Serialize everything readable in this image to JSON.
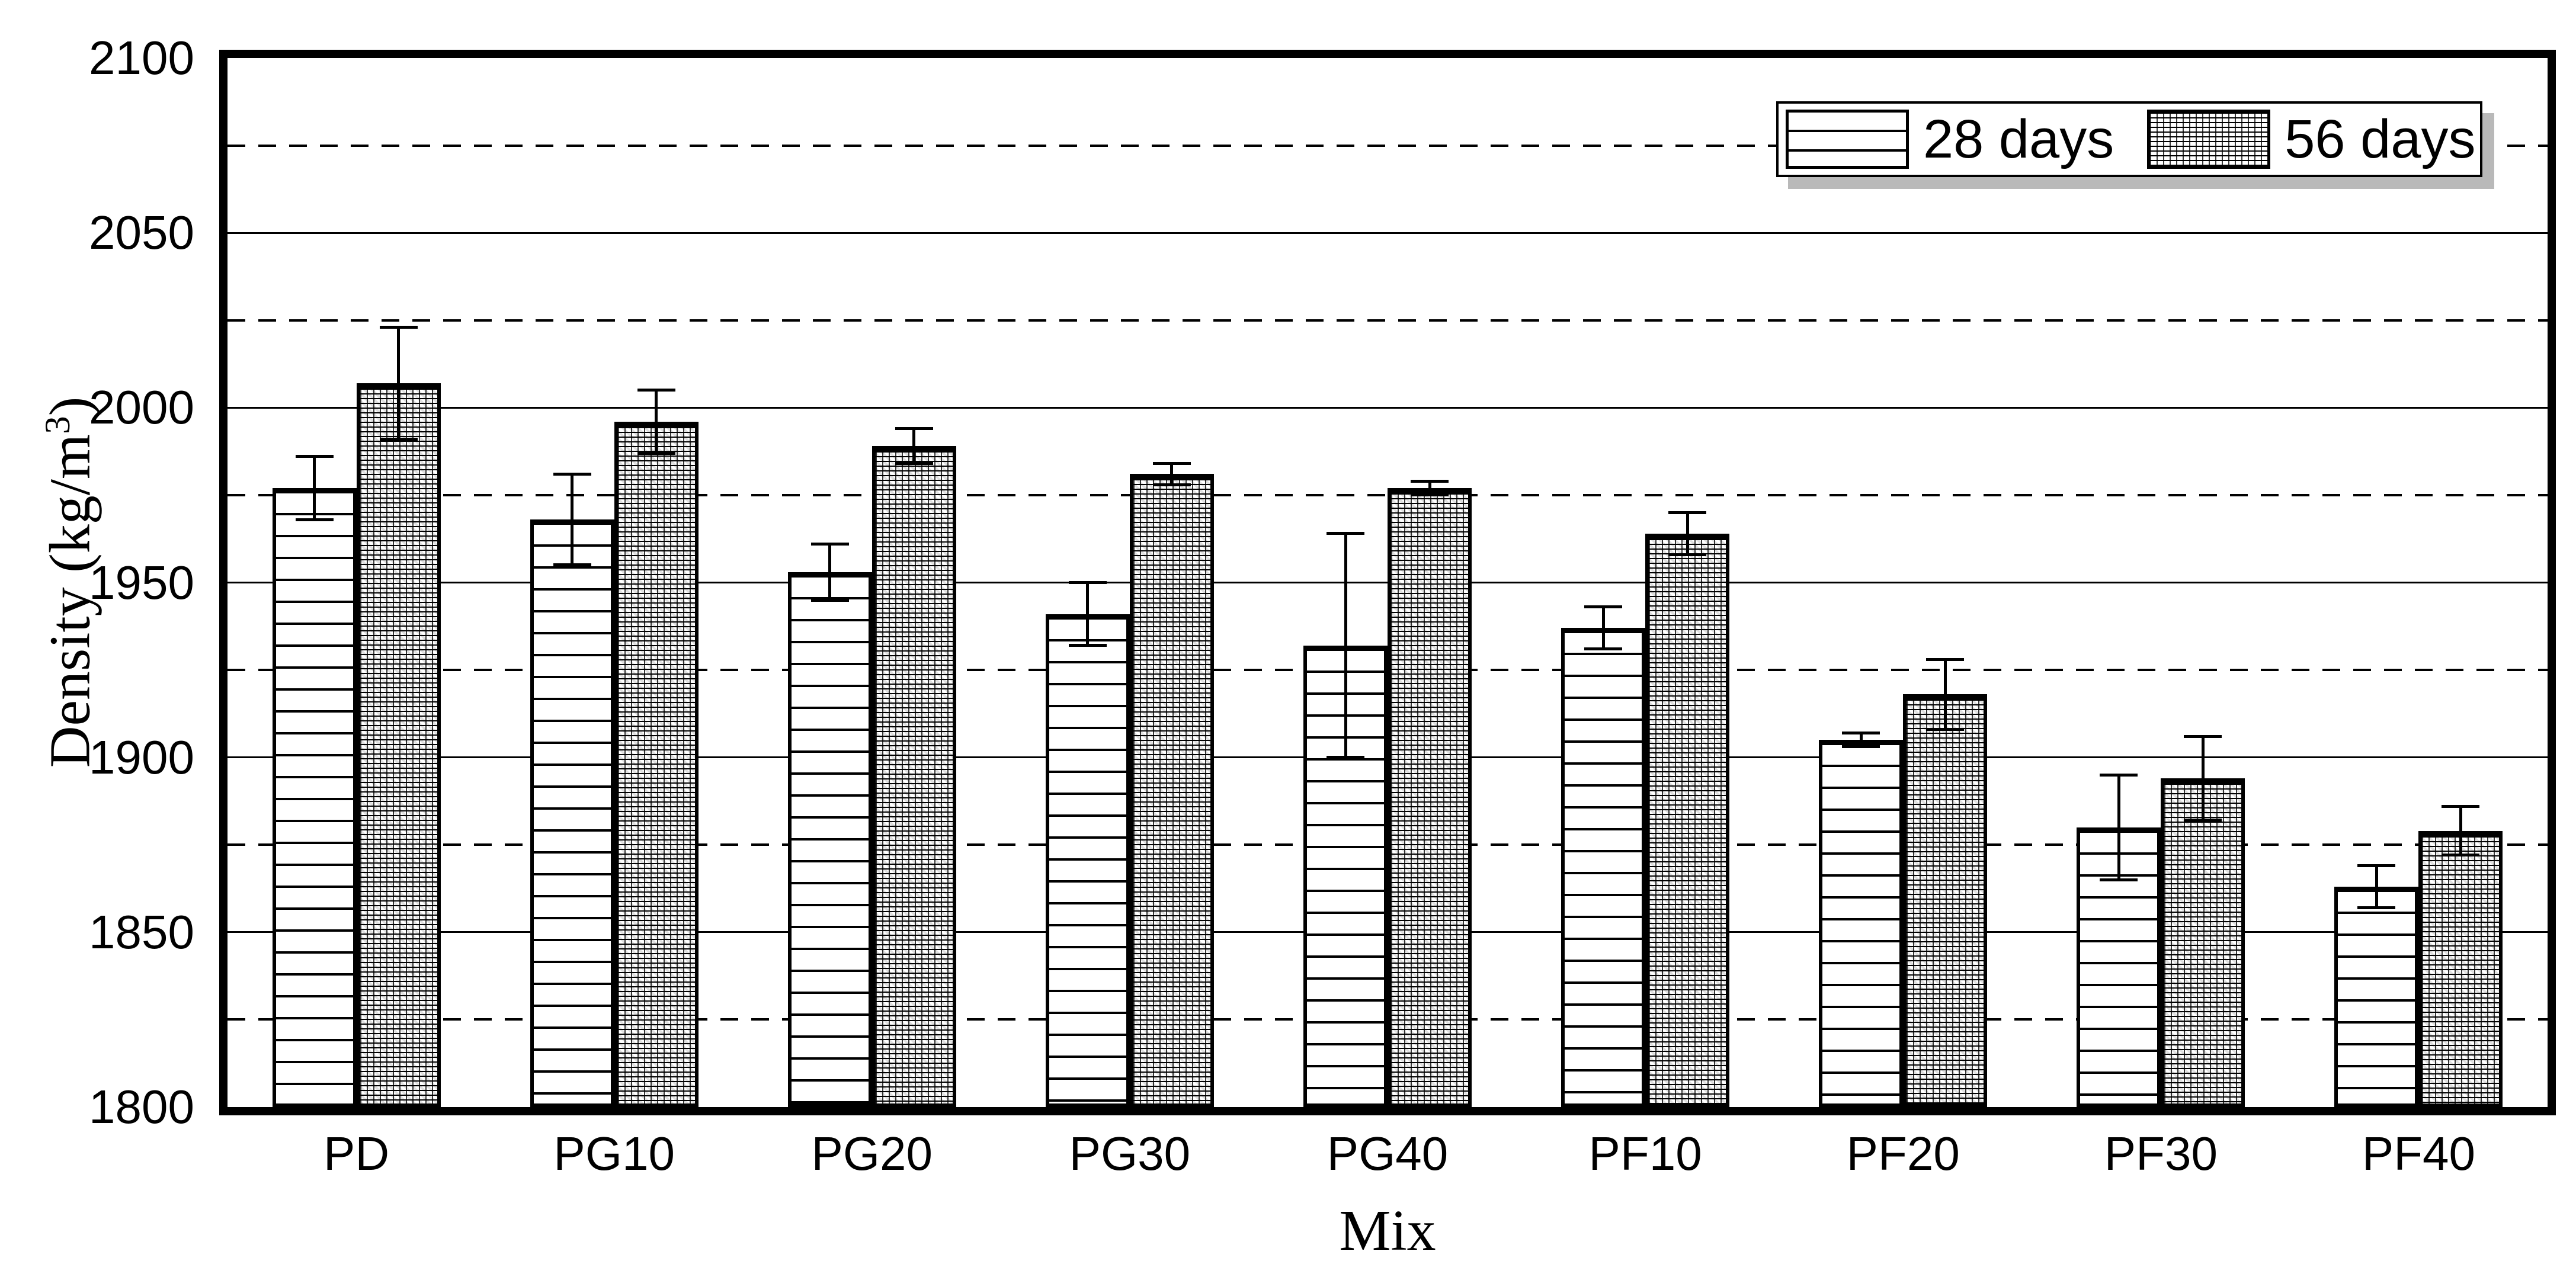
{
  "chart_data": {
    "type": "bar",
    "title": "",
    "xlabel": "Mix",
    "ylabel": "Density (kg/m³)",
    "ylim": [
      1800,
      2100
    ],
    "y_major_step": 50,
    "y_minor_step": 25,
    "grid": {
      "major": "solid",
      "minor": "dashed"
    },
    "legend_position": "top-right",
    "categories": [
      "PD",
      "PG10",
      "PG20",
      "PG30",
      "PG40",
      "PF10",
      "PF20",
      "PF30",
      "PF40"
    ],
    "series": [
      {
        "name": "28 days",
        "pattern": "white-horizontal-lines",
        "values": [
          1977,
          1968,
          1953,
          1941,
          1932,
          1937,
          1905,
          1880,
          1863
        ],
        "errors": [
          9,
          13,
          8,
          9,
          32,
          6,
          2,
          15,
          6
        ]
      },
      {
        "name": "56 days",
        "pattern": "gray-brick-mesh",
        "values": [
          2007,
          1996,
          1989,
          1981,
          1977,
          1964,
          1918,
          1894,
          1879
        ],
        "errors": [
          16,
          9,
          5,
          3,
          2,
          6,
          10,
          12,
          7
        ]
      }
    ]
  },
  "figure": {
    "y_axis": {
      "tick_labels": [
        "2100",
        "2050",
        "2000",
        "1950",
        "1900",
        "1850",
        "1800"
      ],
      "label_parts": {
        "pre": "Density (kg/m",
        "sup": "3",
        "post": ")"
      }
    },
    "x_axis": {
      "label": "Mix"
    },
    "legend": {
      "entries": [
        "28 days",
        "56 days"
      ]
    },
    "colors": {
      "ink": "#000000",
      "background": "#ffffff",
      "legend_shadow": "#b9b9b9"
    }
  }
}
